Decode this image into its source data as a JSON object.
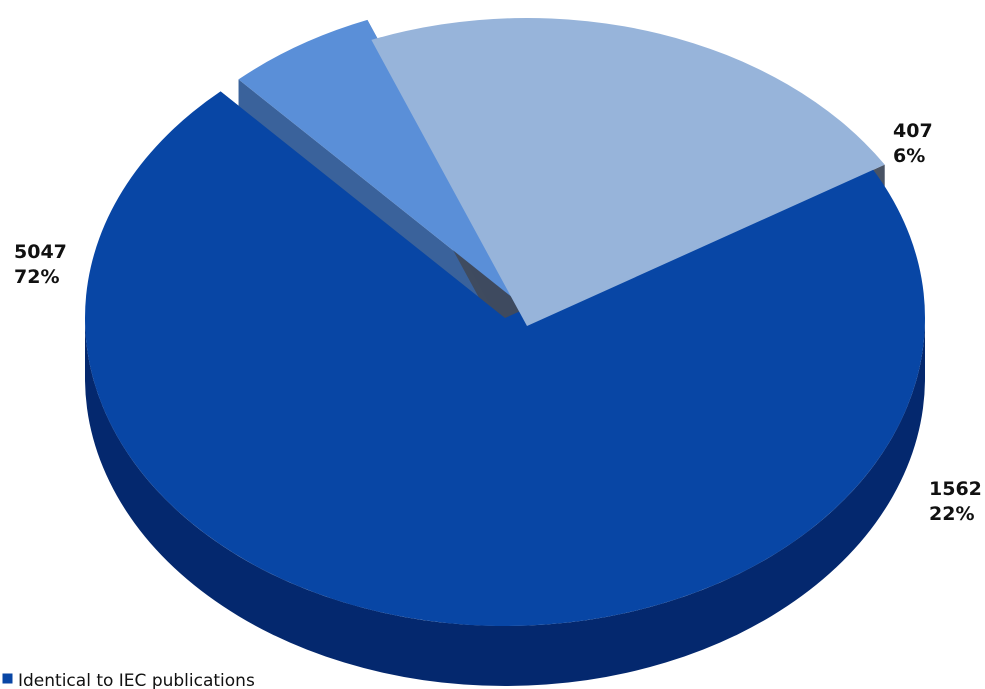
{
  "chart_data": {
    "type": "pie",
    "title": "",
    "style": "3d-exploded",
    "slices": [
      {
        "value": 5047,
        "percent": "72%",
        "value_label": "5047",
        "color": "#0846a5",
        "side_color": "#04286e"
      },
      {
        "value": 407,
        "percent": "6%",
        "value_label": "407",
        "color": "#5a8fd8",
        "side_color": "#2f5a96"
      },
      {
        "value": 1562,
        "percent": "22%",
        "value_label": "1562",
        "color": "#97b4da",
        "side_color": "#3f4a5c"
      }
    ],
    "legend": {
      "placement": "bottom-left",
      "entries": [
        {
          "label": "Identical to IEC publications",
          "color": "#0846a5"
        }
      ]
    }
  }
}
